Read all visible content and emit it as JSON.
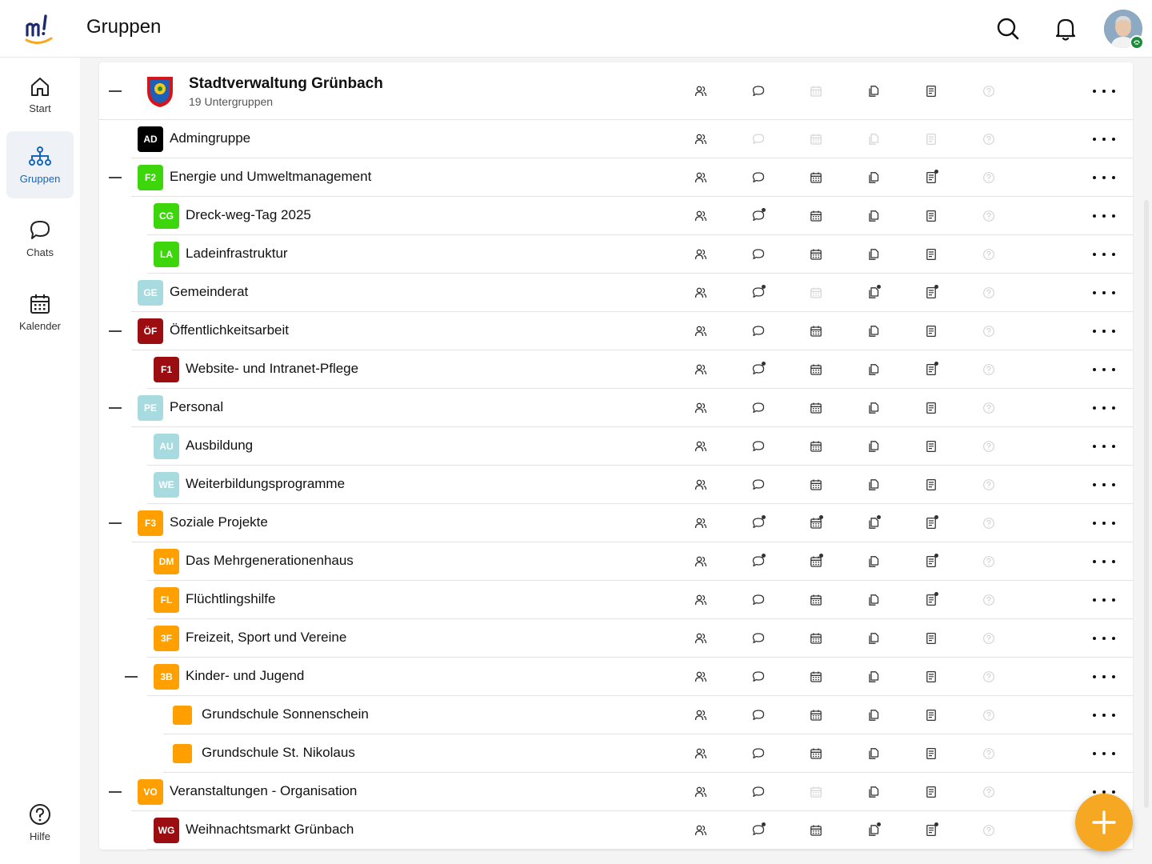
{
  "header": {
    "title": "Gruppen"
  },
  "nav": [
    {
      "key": "start",
      "label": "Start",
      "icon": "home-icon"
    },
    {
      "key": "gruppen",
      "label": "Gruppen",
      "icon": "groups-icon",
      "active": true
    },
    {
      "key": "chats",
      "label": "Chats",
      "icon": "chat-icon"
    },
    {
      "key": "kalender",
      "label": "Kalender",
      "icon": "calendar-icon"
    }
  ],
  "help": {
    "label": "Hilfe"
  },
  "org": {
    "title": "Stadtverwaltung Grünbach",
    "subtitle": "19 Untergruppen"
  },
  "colors": {
    "accent": "#1565c0",
    "fab": "#f7a823",
    "green": "#3dd60c",
    "lightblue": "#a8dbe0",
    "red": "#9b0d10",
    "orange": "#ffa000",
    "black": "#000000"
  },
  "groups": [
    {
      "name": "Admingruppe",
      "code": "AD",
      "color": "#000000",
      "level": 1,
      "collapsible": false,
      "bold": true,
      "states": [
        "on",
        "off",
        "off",
        "off",
        "off",
        "off"
      ]
    },
    {
      "name": "Energie und Umweltmanagement",
      "code": "F2",
      "color": "#3dd60c",
      "level": 1,
      "collapsible": true,
      "bold": true,
      "states": [
        "on",
        "on",
        "on",
        "on",
        "dot",
        "off"
      ]
    },
    {
      "name": "Dreck-weg-Tag 2025",
      "code": "CG",
      "color": "#3dd60c",
      "level": 2,
      "collapsible": false,
      "bold": true,
      "states": [
        "on",
        "dot",
        "on",
        "on",
        "on",
        "off"
      ]
    },
    {
      "name": "Ladeinfrastruktur",
      "code": "LA",
      "color": "#3dd60c",
      "level": 2,
      "collapsible": false,
      "bold": true,
      "states": [
        "on",
        "on",
        "on",
        "on",
        "on",
        "off"
      ]
    },
    {
      "name": "Gemeinderat",
      "code": "GE",
      "color": "#a8dbe0",
      "level": 1,
      "collapsible": false,
      "bold": true,
      "states": [
        "on",
        "dot",
        "off",
        "dot",
        "dot",
        "off"
      ]
    },
    {
      "name": "Öffentlichkeitsarbeit",
      "code": "ÖF",
      "color": "#9b0d10",
      "level": 1,
      "collapsible": true,
      "bold": true,
      "states": [
        "on",
        "on",
        "on",
        "on",
        "on",
        "off"
      ]
    },
    {
      "name": "Website- und Intranet-Pflege",
      "code": "F1",
      "color": "#9b0d10",
      "level": 2,
      "collapsible": false,
      "bold": true,
      "states": [
        "on",
        "dot",
        "on",
        "on",
        "dot",
        "off"
      ]
    },
    {
      "name": "Personal",
      "code": "PE",
      "color": "#a8dbe0",
      "level": 1,
      "collapsible": true,
      "bold": true,
      "states": [
        "on",
        "on",
        "on",
        "on",
        "on",
        "off"
      ]
    },
    {
      "name": "Ausbildung",
      "code": "AU",
      "color": "#a8dbe0",
      "level": 2,
      "collapsible": false,
      "bold": true,
      "states": [
        "on",
        "on",
        "on",
        "on",
        "on",
        "off"
      ]
    },
    {
      "name": "Weiterbildungsprogramme",
      "code": "WE",
      "color": "#a8dbe0",
      "level": 2,
      "collapsible": false,
      "bold": true,
      "states": [
        "on",
        "on",
        "on",
        "on",
        "on",
        "off"
      ]
    },
    {
      "name": "Soziale Projekte",
      "code": "F3",
      "color": "#ffa000",
      "level": 1,
      "collapsible": true,
      "bold": true,
      "states": [
        "on",
        "dot",
        "dot",
        "dot",
        "dot",
        "off"
      ]
    },
    {
      "name": "Das Mehrgenerationenhaus",
      "code": "DM",
      "color": "#ffa000",
      "level": 2,
      "collapsible": false,
      "bold": true,
      "states": [
        "on",
        "dot",
        "dot",
        "on",
        "dot",
        "off"
      ]
    },
    {
      "name": "Flüchtlingshilfe",
      "code": "FL",
      "color": "#ffa000",
      "level": 2,
      "collapsible": false,
      "bold": true,
      "states": [
        "on",
        "on",
        "on",
        "on",
        "dot",
        "off"
      ]
    },
    {
      "name": "Freizeit, Sport und Vereine",
      "code": "3F",
      "color": "#ffa000",
      "level": 2,
      "collapsible": false,
      "bold": true,
      "states": [
        "on",
        "on",
        "on",
        "on",
        "on",
        "off"
      ]
    },
    {
      "name": "Kinder- und Jugend",
      "code": "3B",
      "color": "#ffa000",
      "level": 2,
      "collapsible": true,
      "bold": true,
      "states": [
        "on",
        "on",
        "on",
        "on",
        "on",
        "off"
      ]
    },
    {
      "name": "Grundschule Sonnenschein",
      "code": "",
      "color": "#ffa000",
      "level": 3,
      "collapsible": false,
      "bold": false,
      "states": [
        "on",
        "on",
        "on",
        "on",
        "on",
        "off"
      ]
    },
    {
      "name": "Grundschule St. Nikolaus",
      "code": "",
      "color": "#ffa000",
      "level": 3,
      "collapsible": false,
      "bold": false,
      "states": [
        "on",
        "on",
        "on",
        "on",
        "on",
        "off"
      ]
    },
    {
      "name": "Veranstaltungen - Organisation",
      "code": "VO",
      "color": "#ffa000",
      "level": 1,
      "collapsible": true,
      "bold": true,
      "states": [
        "on",
        "on",
        "off",
        "on",
        "on",
        "off"
      ]
    },
    {
      "name": "Weihnachtsmarkt Grünbach",
      "code": "WG",
      "color": "#9b0d10",
      "level": 2,
      "collapsible": false,
      "bold": true,
      "states": [
        "on",
        "dot",
        "on",
        "dot",
        "dot",
        "off"
      ]
    }
  ],
  "header_row_states": [
    "on",
    "on",
    "off",
    "on",
    "on",
    "off"
  ],
  "feature_icons": [
    "members-icon",
    "chat-icon",
    "calendar-icon",
    "files-icon",
    "document-icon",
    "help-icon"
  ]
}
